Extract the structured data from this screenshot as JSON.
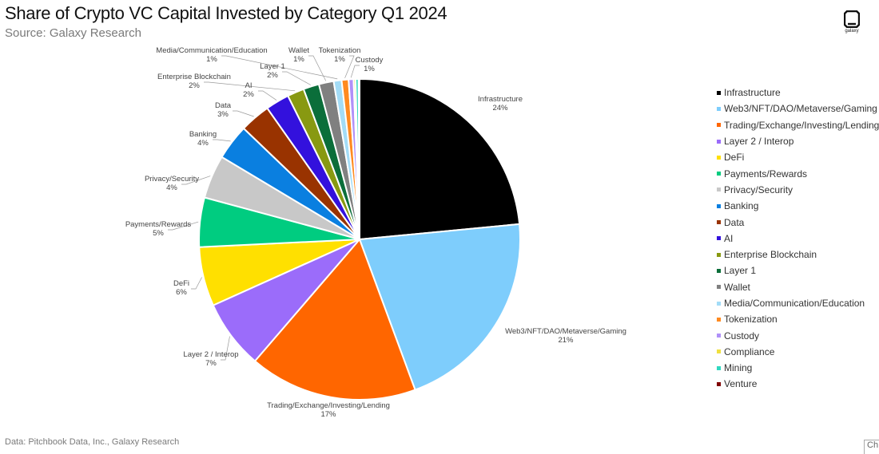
{
  "header": {
    "title": "Share of Crypto VC Capital Invested by Category Q1 2024",
    "subtitle": "Source: Galaxy Research",
    "logo_text": "galaxy"
  },
  "footer": {
    "note": "Data: Pitchbook Data, Inc., Galaxy Research",
    "corner_label": "Ch"
  },
  "chart_data": {
    "type": "pie",
    "title": "Share of Crypto VC Capital Invested by Category Q1 2024",
    "legend_position": "right",
    "slices": [
      {
        "name": "Infrastructure",
        "value": 23.6,
        "label": "24%",
        "color": "#000000"
      },
      {
        "name": "Web3/NFT/DAO/Metaverse/Gaming",
        "value": 21.0,
        "label": "21%",
        "color": "#7ecdfc"
      },
      {
        "name": "Trading/Exchange/Investing/Lending",
        "value": 17.0,
        "label": "17%",
        "color": "#ff6600"
      },
      {
        "name": "Layer 2 / Interop",
        "value": 7.0,
        "label": "7%",
        "color": "#9b6cfa"
      },
      {
        "name": "DeFi",
        "value": 6.0,
        "label": "6%",
        "color": "#ffe000"
      },
      {
        "name": "Payments/Rewards",
        "value": 5.0,
        "label": "5%",
        "color": "#00cc80"
      },
      {
        "name": "Privacy/Security",
        "value": 4.4,
        "label": "4%",
        "color": "#c8c8c8"
      },
      {
        "name": "Banking",
        "value": 3.6,
        "label": "4%",
        "color": "#0a7fe0"
      },
      {
        "name": "Data",
        "value": 3.1,
        "label": "3%",
        "color": "#993300"
      },
      {
        "name": "AI",
        "value": 2.4,
        "label": "2%",
        "color": "#3311dd"
      },
      {
        "name": "Enterprise Blockchain",
        "value": 1.7,
        "label": "2%",
        "color": "#889911"
      },
      {
        "name": "Layer 1",
        "value": 1.6,
        "label": "2%",
        "color": "#0b6e3a"
      },
      {
        "name": "Wallet",
        "value": 1.5,
        "label": "1%",
        "color": "#808080"
      },
      {
        "name": "Media/Communication/Education",
        "value": 0.8,
        "label": "1%",
        "color": "#a3dcf7"
      },
      {
        "name": "Tokenization",
        "value": 0.7,
        "label": "1%",
        "color": "#ff8a20"
      },
      {
        "name": "Custody",
        "value": 0.5,
        "label": "1%",
        "color": "#b090f8"
      },
      {
        "name": "Compliance",
        "value": 0.2,
        "label": "",
        "color": "#f0e040"
      },
      {
        "name": "Mining",
        "value": 0.3,
        "label": "",
        "color": "#30d8c0"
      },
      {
        "name": "Venture",
        "value": 0.1,
        "label": "",
        "color": "#800000"
      }
    ]
  }
}
